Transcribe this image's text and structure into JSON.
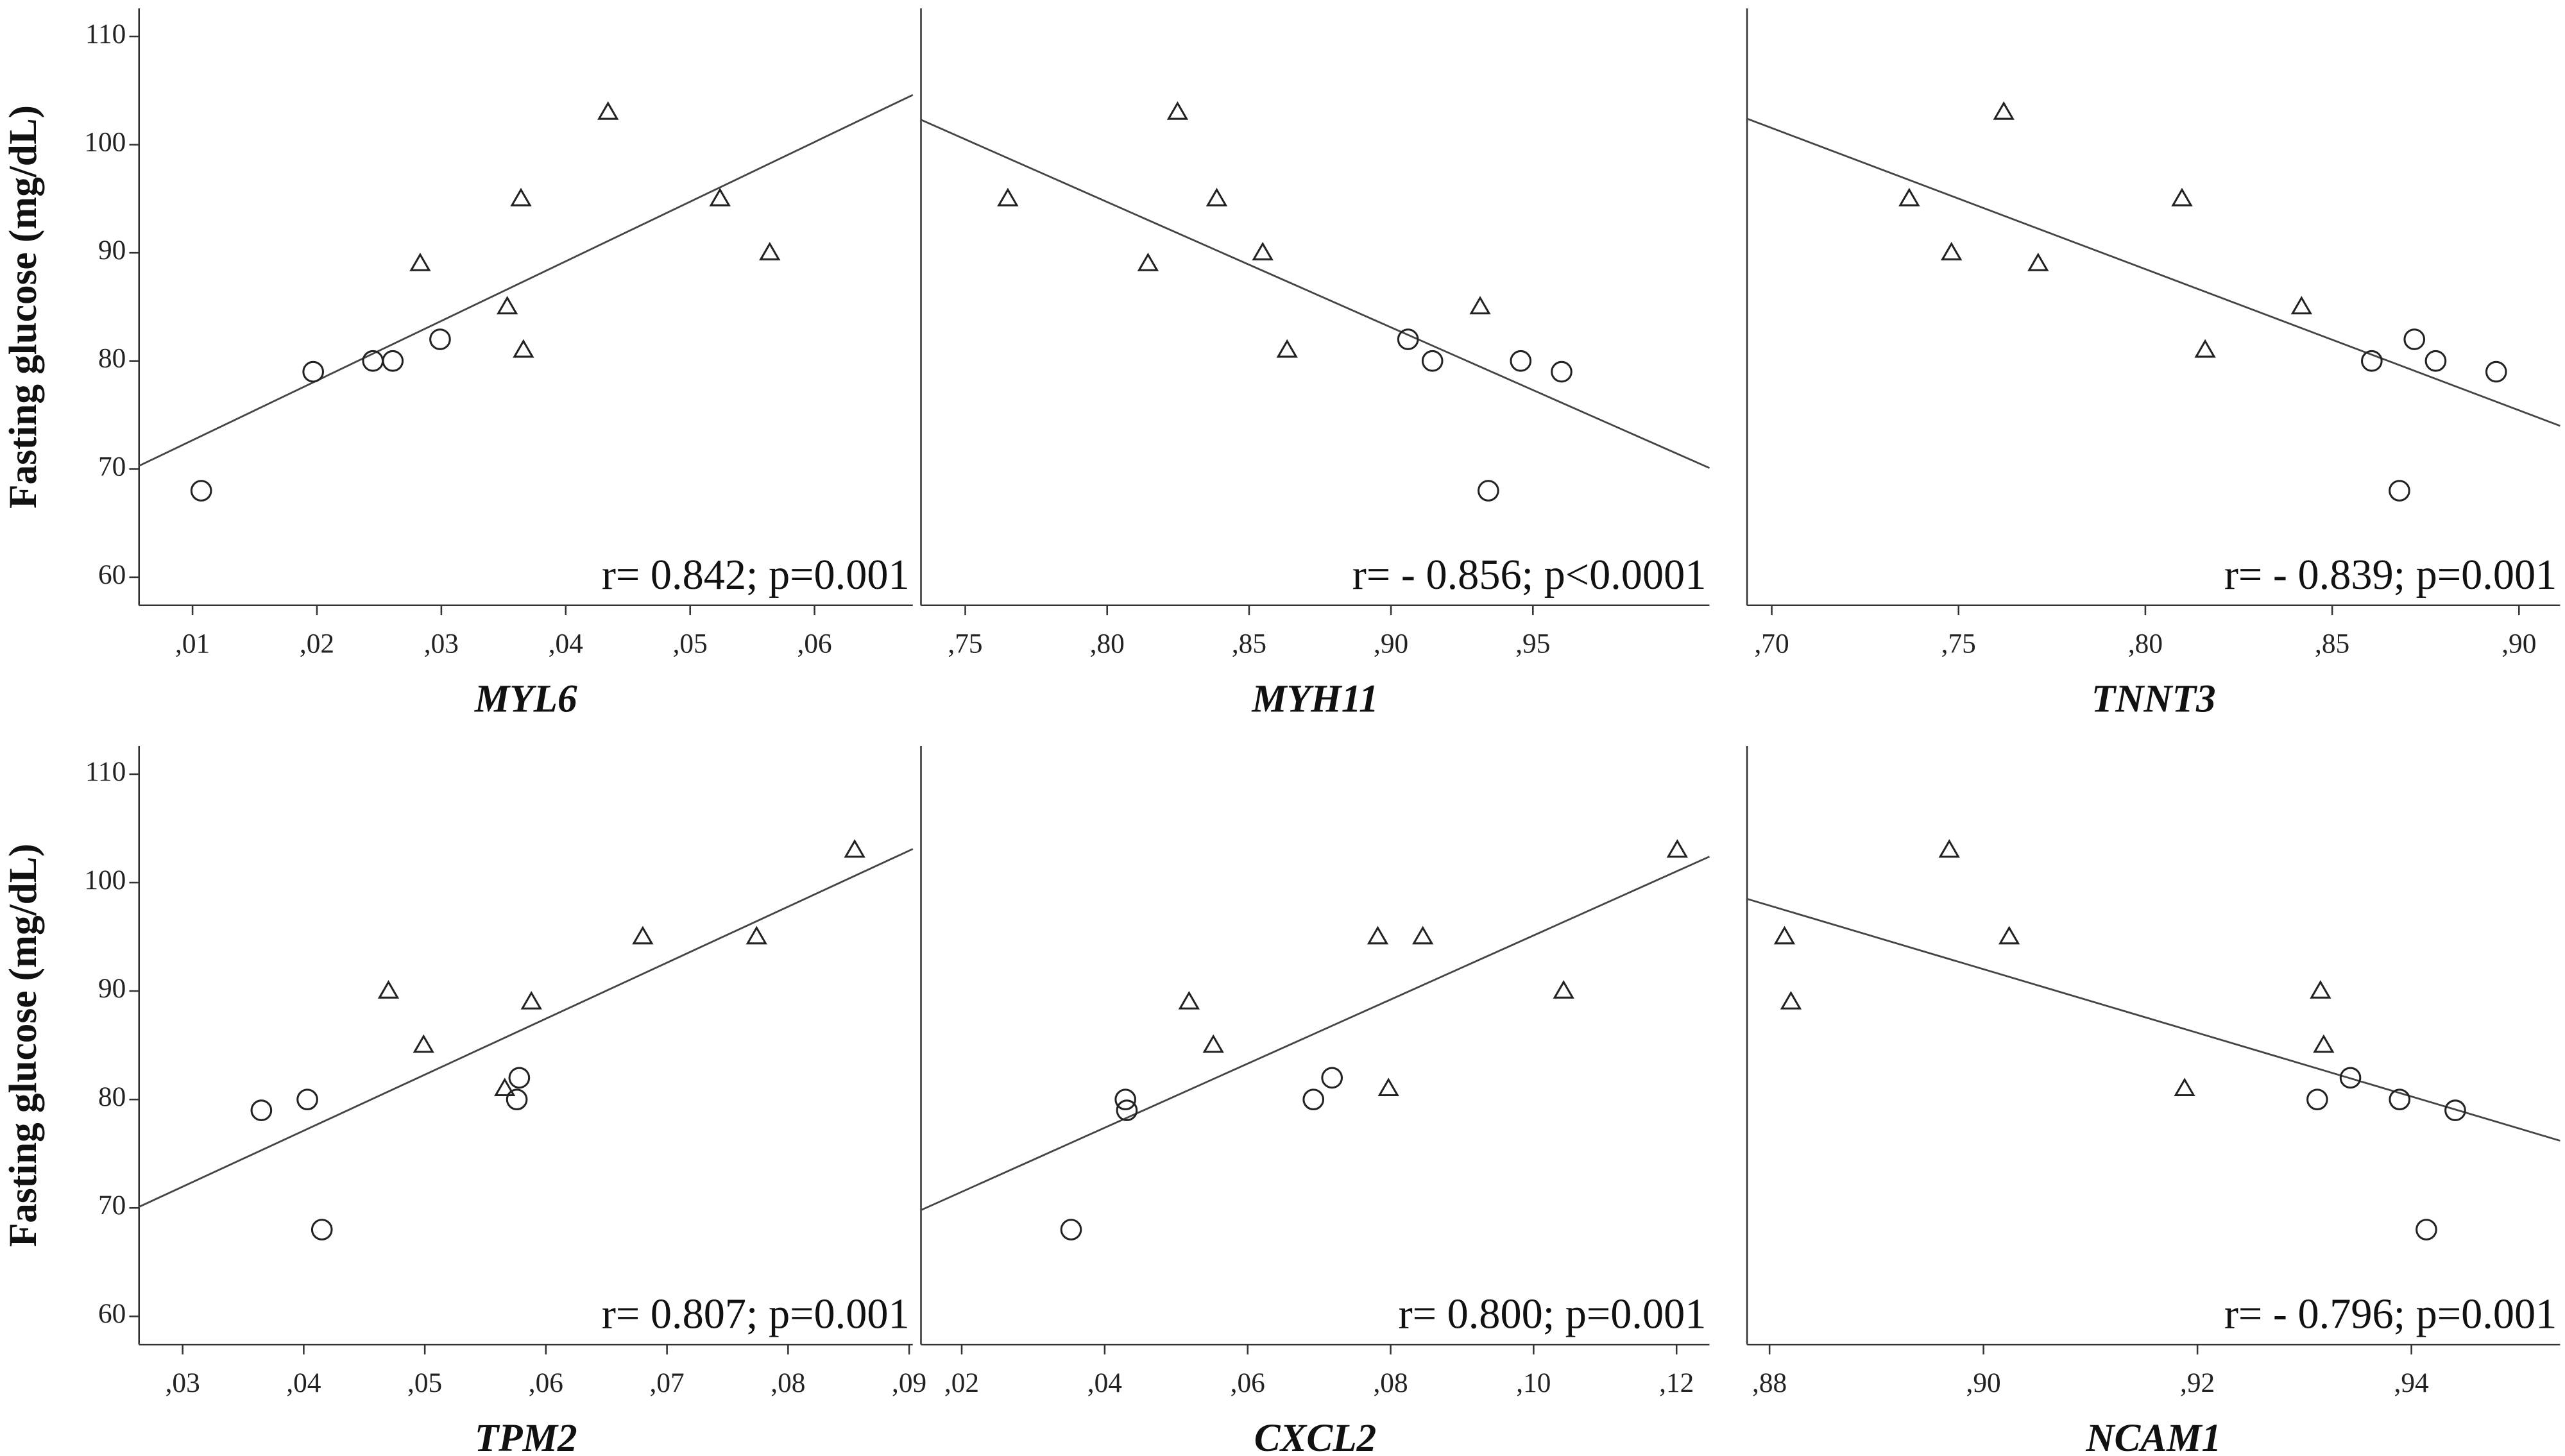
{
  "chart_data": [
    {
      "type": "scatter",
      "y_label": "Fasting glucose (mg/dL)",
      "x_label": "MYL6",
      "annotation": "r= 0.842; p=0.001",
      "xlim": [
        0.0057,
        0.0679
      ],
      "ylim": [
        57.4,
        112.6
      ],
      "xticks": [
        {
          "value": 0.01,
          "label": ",01"
        },
        {
          "value": 0.02,
          "label": ",02"
        },
        {
          "value": 0.03,
          "label": ",03"
        },
        {
          "value": 0.04,
          "label": ",04"
        },
        {
          "value": 0.05,
          "label": ",05"
        },
        {
          "value": 0.06,
          "label": ",06"
        }
      ],
      "yticks": [
        60,
        70,
        80,
        90,
        100,
        110
      ],
      "series": [
        {
          "marker": "circle",
          "color": "#222222",
          "x": [
            0.0107,
            0.0197,
            0.0245,
            0.0261,
            0.0299
          ],
          "values": [
            68,
            79,
            80,
            80,
            82
          ]
        },
        {
          "marker": "triangle",
          "color": "#222222",
          "x": [
            0.0283,
            0.0353,
            0.0364,
            0.0366,
            0.0434,
            0.0524,
            0.0564
          ],
          "values": [
            89,
            85,
            95,
            81,
            103,
            95,
            90
          ]
        }
      ],
      "trend_line": {
        "color": "#444444",
        "x": [
          0.0057,
          0.0679
        ],
        "y": [
          70.3,
          104.6
        ]
      }
    },
    {
      "type": "scatter",
      "x_label": "MYH11",
      "annotation": "r= - 0.856; p<0.0001",
      "xlim": [
        0.7344,
        1.0122
      ],
      "ylim": [
        57.4,
        112.6
      ],
      "xticks": [
        {
          "value": 0.75,
          "label": ",75"
        },
        {
          "value": 0.8,
          "label": ",80"
        },
        {
          "value": 0.85,
          "label": ",85"
        },
        {
          "value": 0.9,
          "label": ",90"
        },
        {
          "value": 0.95,
          "label": ",95"
        }
      ],
      "series": [
        {
          "marker": "circle",
          "color": "#222222",
          "x": [
            0.906,
            0.9146,
            0.9457,
            0.9601,
            0.9343
          ],
          "values": [
            82,
            80,
            80,
            79,
            68
          ]
        },
        {
          "marker": "triangle",
          "color": "#222222",
          "x": [
            0.765,
            0.8144,
            0.8248,
            0.8386,
            0.8548,
            0.8634,
            0.9314
          ],
          "values": [
            95,
            89,
            103,
            95,
            90,
            81,
            85
          ]
        }
      ],
      "trend_line": {
        "color": "#444444",
        "x": [
          0.7344,
          1.0122
        ],
        "y": [
          102.3,
          70.1
        ]
      }
    },
    {
      "type": "scatter",
      "x_label": "TNNT3",
      "annotation": "r= - 0.839; p=0.001",
      "xlim": [
        0.6934,
        0.911
      ],
      "ylim": [
        57.4,
        112.6
      ],
      "xticks": [
        {
          "value": 0.7,
          "label": ",70"
        },
        {
          "value": 0.75,
          "label": ",75"
        },
        {
          "value": 0.8,
          "label": ",80"
        },
        {
          "value": 0.85,
          "label": ",85"
        },
        {
          "value": 0.9,
          "label": ",90"
        }
      ],
      "series": [
        {
          "marker": "circle",
          "color": "#222222",
          "x": [
            0.8606,
            0.872,
            0.8777,
            0.8939,
            0.868
          ],
          "values": [
            80,
            82,
            80,
            79,
            68
          ]
        },
        {
          "marker": "triangle",
          "color": "#222222",
          "x": [
            0.7368,
            0.7481,
            0.7621,
            0.7713,
            0.8098,
            0.816,
            0.8418
          ],
          "values": [
            95,
            90,
            103,
            89,
            95,
            81,
            85
          ]
        }
      ],
      "trend_line": {
        "color": "#444444",
        "x": [
          0.6934,
          0.911
        ],
        "y": [
          102.4,
          74.0
        ]
      }
    },
    {
      "type": "scatter",
      "y_label": "Fasting glucose (mg/dL)",
      "x_label": "TPM2",
      "annotation": "r= 0.807; p=0.001",
      "xlim": [
        0.0264,
        0.0903
      ],
      "ylim": [
        57.4,
        112.6
      ],
      "xticks": [
        {
          "value": 0.03,
          "label": ",03"
        },
        {
          "value": 0.04,
          "label": ",04"
        },
        {
          "value": 0.05,
          "label": ",05"
        },
        {
          "value": 0.06,
          "label": ",06"
        },
        {
          "value": 0.07,
          "label": ",07"
        },
        {
          "value": 0.08,
          "label": ",08"
        },
        {
          "value": 0.09,
          "label": ",09"
        }
      ],
      "yticks": [
        60,
        70,
        80,
        90,
        100,
        110
      ],
      "series": [
        {
          "marker": "circle",
          "color": "#222222",
          "x": [
            0.0365,
            0.0403,
            0.0415,
            0.0578,
            0.0576
          ],
          "values": [
            79,
            80,
            68,
            82,
            80
          ]
        },
        {
          "marker": "triangle",
          "color": "#222222",
          "x": [
            0.047,
            0.0499,
            0.0566,
            0.0588,
            0.068,
            0.0774,
            0.0855
          ],
          "values": [
            90,
            85,
            81,
            89,
            95,
            95,
            103
          ]
        }
      ],
      "trend_line": {
        "color": "#444444",
        "x": [
          0.0264,
          0.0903
        ],
        "y": [
          70.1,
          103.1
        ]
      }
    },
    {
      "type": "scatter",
      "x_label": "CXCL2",
      "annotation": "r= 0.800; p=0.001",
      "xlim": [
        0.0143,
        0.1246
      ],
      "ylim": [
        57.4,
        112.6
      ],
      "xticks": [
        {
          "value": 0.02,
          "label": ",02"
        },
        {
          "value": 0.04,
          "label": ",04"
        },
        {
          "value": 0.06,
          "label": ",06"
        },
        {
          "value": 0.08,
          "label": ",08"
        },
        {
          "value": 0.1,
          "label": ",10"
        },
        {
          "value": 0.12,
          "label": ",12"
        }
      ],
      "series": [
        {
          "marker": "circle",
          "color": "#222222",
          "x": [
            0.0353,
            0.0429,
            0.0431,
            0.0692,
            0.0718
          ],
          "values": [
            68,
            80,
            79,
            80,
            82
          ]
        },
        {
          "marker": "triangle",
          "color": "#222222",
          "x": [
            0.0518,
            0.0552,
            0.0782,
            0.0797,
            0.0845,
            0.1042,
            0.1201
          ],
          "values": [
            89,
            85,
            95,
            81,
            95,
            90,
            103
          ]
        }
      ],
      "trend_line": {
        "color": "#444444",
        "x": [
          0.0143,
          0.1246
        ],
        "y": [
          69.8,
          102.4
        ]
      }
    },
    {
      "type": "scatter",
      "x_label": "NCAM1",
      "annotation": "r= - 0.796; p=0.001",
      "xlim": [
        0.8779,
        0.9539
      ],
      "ylim": [
        57.4,
        112.6
      ],
      "xticks": [
        {
          "value": 0.88,
          "label": ",88"
        },
        {
          "value": 0.9,
          "label": ",90"
        },
        {
          "value": 0.92,
          "label": ",92"
        },
        {
          "value": 0.94,
          "label": ",94"
        }
      ],
      "series": [
        {
          "marker": "circle",
          "color": "#222222",
          "x": [
            0.9312,
            0.9343,
            0.9389,
            0.9441,
            0.9414
          ],
          "values": [
            80,
            82,
            80,
            79,
            68
          ]
        },
        {
          "marker": "triangle",
          "color": "#222222",
          "x": [
            0.8814,
            0.882,
            0.8968,
            0.9024,
            0.9188,
            0.9315,
            0.9318
          ],
          "values": [
            95,
            89,
            103,
            95,
            81,
            90,
            85
          ]
        }
      ],
      "trend_line": {
        "color": "#444444",
        "x": [
          0.8779,
          0.9539
        ],
        "y": [
          98.5,
          76.2
        ]
      }
    }
  ]
}
